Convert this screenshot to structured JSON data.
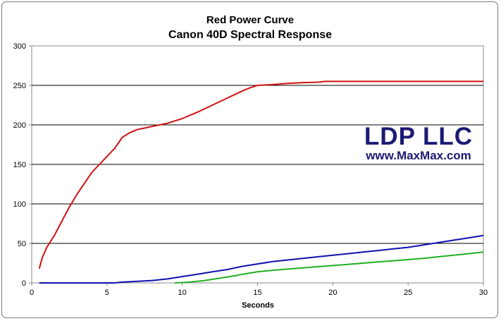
{
  "chart_data": {
    "type": "line",
    "title": "Red Power Curve",
    "subtitle": "Canon 40D Spectral Response",
    "xlabel": "Seconds",
    "ylabel": "",
    "xlim": [
      0,
      30
    ],
    "ylim": [
      0,
      300
    ],
    "x_ticks": [
      0,
      5,
      10,
      15,
      20,
      25,
      30
    ],
    "y_ticks": [
      0,
      50,
      100,
      150,
      200,
      250,
      300
    ],
    "grid": "horizontal",
    "legend": "none",
    "series": [
      {
        "color": "#d01010",
        "points": [
          [
            0.5,
            18
          ],
          [
            0.7,
            32
          ],
          [
            1.0,
            45
          ],
          [
            1.5,
            60
          ],
          [
            2.0,
            78
          ],
          [
            2.5,
            96
          ],
          [
            3.0,
            112
          ],
          [
            3.5,
            126
          ],
          [
            4.0,
            140
          ],
          [
            4.5,
            150
          ],
          [
            5.0,
            160
          ],
          [
            5.5,
            170
          ],
          [
            5.8,
            178
          ],
          [
            6.0,
            184
          ],
          [
            6.5,
            190
          ],
          [
            7.0,
            194
          ],
          [
            7.5,
            196
          ],
          [
            8.0,
            198
          ],
          [
            8.5,
            200
          ],
          [
            9.0,
            202
          ],
          [
            10.0,
            208
          ],
          [
            11.0,
            216
          ],
          [
            12.0,
            225
          ],
          [
            13.0,
            234
          ],
          [
            14.0,
            243
          ],
          [
            14.5,
            247
          ],
          [
            15.0,
            250
          ],
          [
            16.0,
            251
          ],
          [
            17.0,
            252.5
          ],
          [
            18.0,
            253.5
          ],
          [
            19.0,
            254
          ],
          [
            19.5,
            255
          ],
          [
            20.0,
            255
          ],
          [
            25.0,
            255
          ],
          [
            30.0,
            255
          ]
        ]
      },
      {
        "color": "#1010b0",
        "points": [
          [
            0.5,
            0
          ],
          [
            5.5,
            0
          ],
          [
            6.0,
            1
          ],
          [
            7.0,
            2
          ],
          [
            8.0,
            3
          ],
          [
            9.0,
            5
          ],
          [
            10.0,
            8
          ],
          [
            11.0,
            11
          ],
          [
            12.0,
            14
          ],
          [
            13.0,
            17
          ],
          [
            14.0,
            21
          ],
          [
            15.0,
            24
          ],
          [
            16.0,
            27
          ],
          [
            17.0,
            29
          ],
          [
            18.0,
            31
          ],
          [
            19.0,
            33
          ],
          [
            20.0,
            35
          ],
          [
            21.0,
            37
          ],
          [
            22.0,
            39
          ],
          [
            23.0,
            41
          ],
          [
            24.0,
            43
          ],
          [
            25.0,
            45
          ],
          [
            26.0,
            48
          ],
          [
            27.0,
            51
          ],
          [
            28.0,
            54
          ],
          [
            29.0,
            57
          ],
          [
            30.0,
            60
          ]
        ]
      },
      {
        "color": "#20b020",
        "points": [
          [
            9.5,
            0
          ],
          [
            10.5,
            1
          ],
          [
            11.5,
            3
          ],
          [
            12.5,
            6
          ],
          [
            13.5,
            9
          ],
          [
            14.0,
            11
          ],
          [
            15.0,
            14
          ],
          [
            16.0,
            16
          ],
          [
            17.0,
            17.5
          ],
          [
            18.0,
            19
          ],
          [
            19.0,
            20.5
          ],
          [
            20.0,
            22
          ],
          [
            21.0,
            23.5
          ],
          [
            22.0,
            25
          ],
          [
            23.0,
            26.5
          ],
          [
            24.0,
            28
          ],
          [
            25.0,
            29.5
          ],
          [
            26.0,
            31
          ],
          [
            27.0,
            33
          ],
          [
            28.0,
            35
          ],
          [
            29.0,
            37
          ],
          [
            30.0,
            39
          ]
        ]
      }
    ]
  },
  "watermark": {
    "company": "LDP LLC",
    "website": "www.MaxMax.com",
    "color": "#1a1a73"
  },
  "colors": {
    "frame": "#7a7a7a",
    "gridline": "#000000",
    "axis": "#888888"
  }
}
